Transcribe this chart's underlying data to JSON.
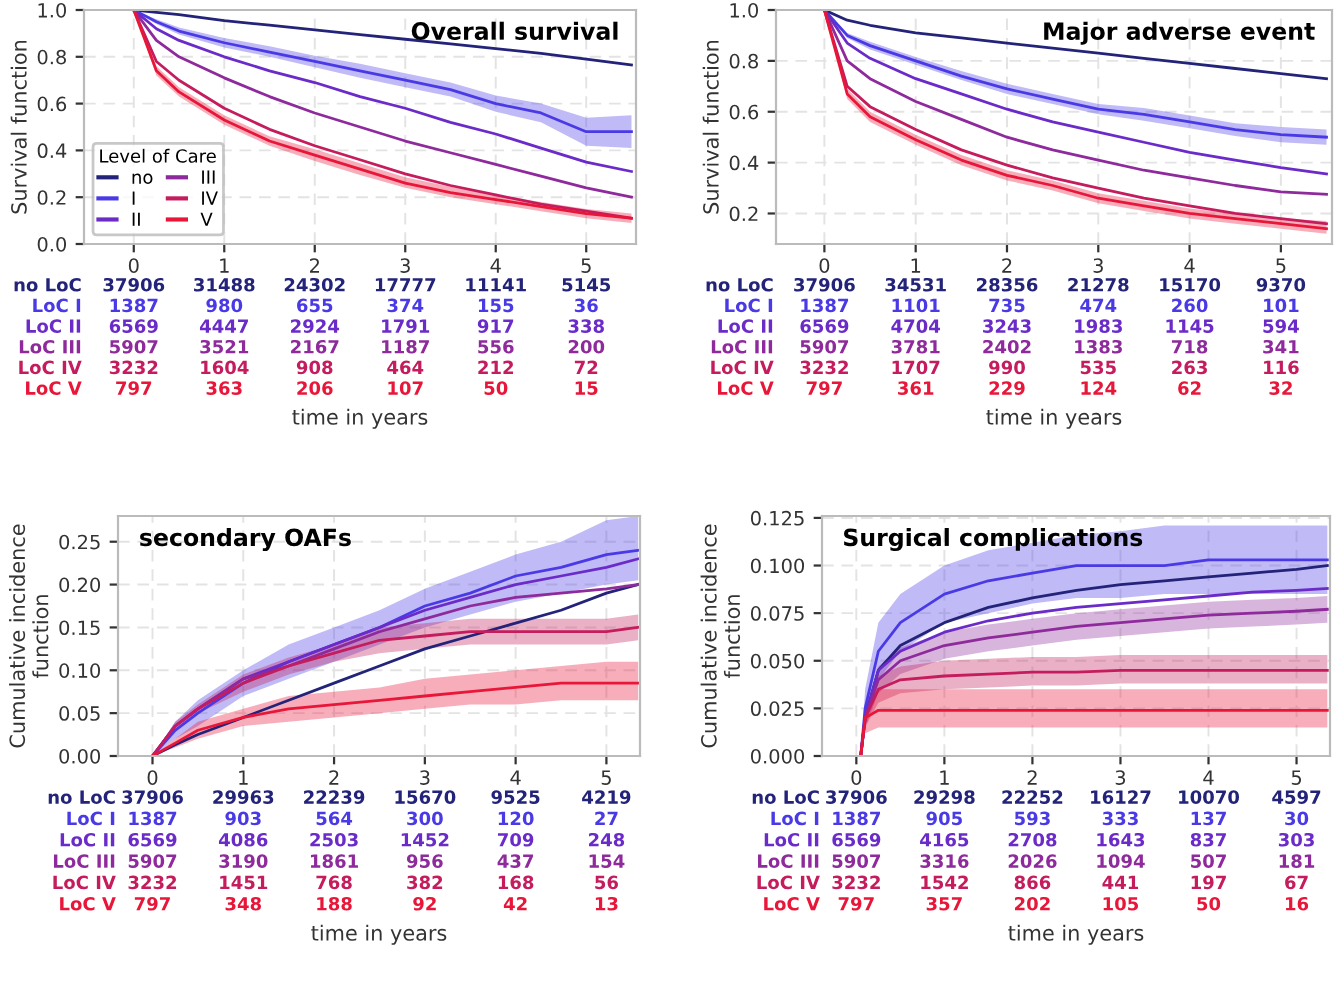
{
  "chart_data": [
    {
      "type": "line",
      "title": "Overall survival",
      "xlabel": "time in years",
      "ylabel": "Survival function",
      "legend": "bottom left",
      "legend_title": "Level of Care",
      "grid": true,
      "x": [
        0,
        0.25,
        0.5,
        1,
        1.5,
        2,
        2.5,
        3,
        3.5,
        4,
        4.5,
        5,
        5.5
      ],
      "xlim": [
        -0.55,
        5.55
      ],
      "xticks": [
        0,
        1,
        2,
        3,
        4,
        5
      ],
      "ylim": [
        0,
        1
      ],
      "yticks": [
        {
          "value": 0,
          "label": "0.0"
        },
        {
          "value": 0.2,
          "label": "0.2"
        },
        {
          "value": 0.4,
          "label": "0.4"
        },
        {
          "value": 0.6,
          "label": "0.6"
        },
        {
          "value": 0.8,
          "label": "0.8"
        },
        {
          "value": 1,
          "label": "1.0"
        }
      ],
      "series": [
        {
          "name": "no",
          "color": "#23237a",
          "values": [
            1,
            0.99,
            0.98,
            0.955,
            0.935,
            0.915,
            0.895,
            0.875,
            0.855,
            0.835,
            0.815,
            0.79,
            0.765
          ]
        },
        {
          "name": "I",
          "color": "#4a3ae6",
          "values": [
            1,
            0.95,
            0.91,
            0.86,
            0.82,
            0.78,
            0.74,
            0.7,
            0.66,
            0.6,
            0.56,
            0.48,
            0.48
          ],
          "lower": [
            1,
            0.94,
            0.895,
            0.84,
            0.8,
            0.755,
            0.71,
            0.67,
            0.63,
            0.565,
            0.52,
            0.42,
            0.41
          ],
          "upper": [
            1,
            0.96,
            0.925,
            0.88,
            0.845,
            0.805,
            0.77,
            0.73,
            0.69,
            0.635,
            0.6,
            0.54,
            0.55
          ]
        },
        {
          "name": "II",
          "color": "#6a2bc9",
          "values": [
            1,
            0.92,
            0.87,
            0.8,
            0.74,
            0.69,
            0.63,
            0.58,
            0.52,
            0.47,
            0.41,
            0.35,
            0.31
          ]
        },
        {
          "name": "III",
          "color": "#8e2a9c",
          "values": [
            1,
            0.87,
            0.8,
            0.71,
            0.63,
            0.56,
            0.5,
            0.44,
            0.39,
            0.34,
            0.29,
            0.24,
            0.2
          ]
        },
        {
          "name": "IV",
          "color": "#c41c5c",
          "values": [
            1,
            0.78,
            0.7,
            0.58,
            0.49,
            0.42,
            0.36,
            0.3,
            0.25,
            0.21,
            0.17,
            0.14,
            0.11
          ]
        },
        {
          "name": "V",
          "color": "#e8173a",
          "values": [
            1,
            0.74,
            0.65,
            0.53,
            0.44,
            0.38,
            0.32,
            0.26,
            0.22,
            0.19,
            0.16,
            0.13,
            0.11
          ],
          "lower": [
            1,
            0.72,
            0.63,
            0.51,
            0.42,
            0.355,
            0.295,
            0.24,
            0.2,
            0.17,
            0.14,
            0.11,
            0.09
          ],
          "upper": [
            1,
            0.76,
            0.67,
            0.55,
            0.46,
            0.405,
            0.345,
            0.285,
            0.245,
            0.21,
            0.18,
            0.15,
            0.13
          ]
        }
      ],
      "annotations": [
        "no LoC",
        "37906",
        "31488",
        "24302",
        "17777",
        "11141",
        "5145",
        "LoC I",
        "1387",
        "980",
        "655",
        "374",
        "155",
        "36",
        "LoC II",
        "6569",
        "4447",
        "2924",
        "1791",
        "917",
        "338",
        "LoC III",
        "5907",
        "3521",
        "2167",
        "1187",
        "556",
        "200",
        "LoC IV",
        "3232",
        "1604",
        "908",
        "464",
        "212",
        "72",
        "LoC V",
        "797",
        "363",
        "206",
        "107",
        "50",
        "15"
      ]
    },
    {
      "type": "line",
      "title": "Major adverse event",
      "xlabel": "time in years",
      "ylabel": "Survival function",
      "grid": true,
      "x": [
        0,
        0.25,
        0.5,
        1,
        1.5,
        2,
        2.5,
        3,
        3.5,
        4,
        4.5,
        5,
        5.5
      ],
      "xlim": [
        -0.53,
        5.56
      ],
      "xticks": [
        0,
        1,
        2,
        3,
        4,
        5
      ],
      "ylim": [
        0.08,
        1
      ],
      "yticks": [
        {
          "value": 0.2,
          "label": "0.2"
        },
        {
          "value": 0.4,
          "label": "0.4"
        },
        {
          "value": 0.6,
          "label": "0.6"
        },
        {
          "value": 0.8,
          "label": "0.8"
        },
        {
          "value": 1,
          "label": "1.0"
        }
      ],
      "series": [
        {
          "color": "#23237a",
          "values": [
            1,
            0.96,
            0.94,
            0.91,
            0.89,
            0.87,
            0.85,
            0.83,
            0.81,
            0.79,
            0.77,
            0.75,
            0.73
          ]
        },
        {
          "color": "#4a3ae6",
          "values": [
            1,
            0.9,
            0.86,
            0.8,
            0.74,
            0.69,
            0.65,
            0.61,
            0.59,
            0.56,
            0.53,
            0.51,
            0.5
          ],
          "lower": [
            1,
            0.89,
            0.845,
            0.785,
            0.725,
            0.67,
            0.63,
            0.59,
            0.565,
            0.535,
            0.505,
            0.48,
            0.47
          ],
          "upper": [
            1,
            0.91,
            0.875,
            0.815,
            0.76,
            0.71,
            0.67,
            0.63,
            0.615,
            0.585,
            0.555,
            0.54,
            0.53
          ]
        },
        {
          "color": "#6a2bc9",
          "values": [
            1,
            0.87,
            0.81,
            0.73,
            0.67,
            0.61,
            0.56,
            0.52,
            0.48,
            0.44,
            0.41,
            0.38,
            0.355
          ]
        },
        {
          "color": "#8e2a9c",
          "values": [
            1,
            0.8,
            0.73,
            0.64,
            0.57,
            0.5,
            0.45,
            0.41,
            0.37,
            0.34,
            0.31,
            0.285,
            0.275
          ]
        },
        {
          "color": "#c41c5c",
          "values": [
            1,
            0.7,
            0.62,
            0.53,
            0.45,
            0.39,
            0.34,
            0.3,
            0.26,
            0.23,
            0.2,
            0.18,
            0.16
          ]
        },
        {
          "color": "#e8173a",
          "values": [
            1,
            0.67,
            0.58,
            0.49,
            0.41,
            0.35,
            0.31,
            0.26,
            0.23,
            0.2,
            0.18,
            0.16,
            0.14
          ],
          "lower": [
            1,
            0.65,
            0.56,
            0.47,
            0.39,
            0.33,
            0.29,
            0.24,
            0.21,
            0.18,
            0.16,
            0.14,
            0.12
          ],
          "upper": [
            1,
            0.69,
            0.6,
            0.51,
            0.43,
            0.37,
            0.33,
            0.28,
            0.25,
            0.22,
            0.2,
            0.18,
            0.17
          ]
        }
      ],
      "annotations": [
        "no LoC",
        "37906",
        "34531",
        "28356",
        "21278",
        "15170",
        "9370",
        "LoC I",
        "1387",
        "1101",
        "735",
        "474",
        "260",
        "101",
        "LoC II",
        "6569",
        "4704",
        "3243",
        "1983",
        "1145",
        "594",
        "LoC III",
        "5907",
        "3781",
        "2402",
        "1383",
        "718",
        "341",
        "LoC IV",
        "3232",
        "1707",
        "990",
        "535",
        "263",
        "116",
        "LoC V",
        "797",
        "361",
        "229",
        "124",
        "62",
        "32"
      ]
    },
    {
      "type": "line",
      "title": "secondary OAFs",
      "xlabel": "time in years",
      "ylabel": "Cumulative incidence\nfunction",
      "grid": true,
      "x": [
        0,
        0.25,
        0.5,
        1,
        1.5,
        2,
        2.5,
        3,
        3.5,
        4,
        4.5,
        5,
        5.35
      ],
      "xlim": [
        -0.38,
        5.37
      ],
      "xticks": [
        0,
        1,
        2,
        3,
        4,
        5
      ],
      "ylim": [
        0,
        0.28
      ],
      "yticks": [
        {
          "value": 0,
          "label": "0.00"
        },
        {
          "value": 0.05,
          "label": "0.05"
        },
        {
          "value": 0.1,
          "label": "0.10"
        },
        {
          "value": 0.15,
          "label": "0.15"
        },
        {
          "value": 0.2,
          "label": "0.20"
        },
        {
          "value": 0.25,
          "label": "0.25"
        }
      ],
      "series": [
        {
          "color": "#23237a",
          "values": [
            0,
            0.013,
            0.025,
            0.045,
            0.065,
            0.085,
            0.105,
            0.125,
            0.14,
            0.155,
            0.17,
            0.19,
            0.2
          ]
        },
        {
          "color": "#4a3ae6",
          "values": [
            0,
            0.03,
            0.05,
            0.085,
            0.11,
            0.13,
            0.15,
            0.175,
            0.19,
            0.21,
            0.22,
            0.235,
            0.24
          ],
          "lower": [
            0,
            0.02,
            0.035,
            0.07,
            0.09,
            0.11,
            0.13,
            0.15,
            0.165,
            0.18,
            0.19,
            0.2,
            0.205
          ],
          "upper": [
            0,
            0.04,
            0.065,
            0.1,
            0.13,
            0.15,
            0.17,
            0.195,
            0.215,
            0.235,
            0.25,
            0.275,
            0.28
          ]
        },
        {
          "color": "#6a2bc9",
          "values": [
            0,
            0.035,
            0.055,
            0.09,
            0.11,
            0.13,
            0.15,
            0.17,
            0.185,
            0.2,
            0.21,
            0.22,
            0.23
          ]
        },
        {
          "color": "#8e2a9c",
          "values": [
            0,
            0.035,
            0.055,
            0.09,
            0.105,
            0.125,
            0.145,
            0.16,
            0.175,
            0.185,
            0.19,
            0.195,
            0.2
          ]
        },
        {
          "color": "#c41c5c",
          "values": [
            0,
            0.035,
            0.055,
            0.085,
            0.105,
            0.12,
            0.135,
            0.14,
            0.145,
            0.145,
            0.145,
            0.145,
            0.15
          ],
          "lower": [
            0,
            0.03,
            0.05,
            0.075,
            0.095,
            0.11,
            0.12,
            0.125,
            0.13,
            0.13,
            0.13,
            0.13,
            0.135
          ],
          "upper": [
            0,
            0.04,
            0.06,
            0.095,
            0.115,
            0.13,
            0.15,
            0.155,
            0.16,
            0.16,
            0.16,
            0.16,
            0.165
          ]
        },
        {
          "color": "#e8173a",
          "values": [
            0,
            0.015,
            0.03,
            0.045,
            0.055,
            0.06,
            0.065,
            0.07,
            0.075,
            0.08,
            0.085,
            0.085,
            0.085
          ],
          "lower": [
            0,
            0.01,
            0.02,
            0.035,
            0.04,
            0.045,
            0.05,
            0.055,
            0.06,
            0.06,
            0.065,
            0.065,
            0.065
          ],
          "upper": [
            0,
            0.02,
            0.04,
            0.055,
            0.07,
            0.075,
            0.08,
            0.09,
            0.095,
            0.1,
            0.105,
            0.11,
            0.11
          ]
        }
      ],
      "annotations": [
        "no LoC",
        "37906",
        "29963",
        "22239",
        "15670",
        "9525",
        "4219",
        "LoC I",
        "1387",
        "903",
        "564",
        "300",
        "120",
        "27",
        "LoC II",
        "6569",
        "4086",
        "2503",
        "1452",
        "709",
        "248",
        "LoC III",
        "5907",
        "3190",
        "1861",
        "956",
        "437",
        "154",
        "LoC IV",
        "3232",
        "1451",
        "768",
        "382",
        "168",
        "56",
        "LoC V",
        "797",
        "348",
        "188",
        "92",
        "42",
        "13"
      ]
    },
    {
      "type": "line",
      "title": "Surgical complications",
      "xlabel": "time in years",
      "ylabel": "Cumulative incidence\nfunction",
      "grid": true,
      "x": [
        0.05,
        0.1,
        0.25,
        0.5,
        1,
        1.5,
        2,
        2.5,
        3,
        3.5,
        4,
        4.5,
        5,
        5.35
      ],
      "xlim": [
        -0.39,
        5.38
      ],
      "xticks": [
        0,
        1,
        2,
        3,
        4,
        5
      ],
      "ylim": [
        0,
        0.126
      ],
      "yticks": [
        {
          "value": 0,
          "label": "0.000"
        },
        {
          "value": 0.025,
          "label": "0.025"
        },
        {
          "value": 0.05,
          "label": "0.050"
        },
        {
          "value": 0.075,
          "label": "0.075"
        },
        {
          "value": 0.1,
          "label": "0.100"
        },
        {
          "value": 0.125,
          "label": "0.125"
        }
      ],
      "series": [
        {
          "color": "#23237a",
          "values": [
            0,
            0.02,
            0.045,
            0.058,
            0.07,
            0.078,
            0.083,
            0.087,
            0.09,
            0.092,
            0.094,
            0.096,
            0.098,
            0.1
          ]
        },
        {
          "color": "#4a3ae6",
          "values": [
            0,
            0.025,
            0.055,
            0.07,
            0.085,
            0.092,
            0.096,
            0.1,
            0.1,
            0.1,
            0.103,
            0.103,
            0.103,
            0.103
          ],
          "lower": [
            0,
            0.015,
            0.04,
            0.055,
            0.07,
            0.075,
            0.08,
            0.083,
            0.083,
            0.085,
            0.085,
            0.085,
            0.085,
            0.085
          ],
          "upper": [
            0,
            0.035,
            0.07,
            0.085,
            0.1,
            0.108,
            0.112,
            0.116,
            0.118,
            0.121,
            0.121,
            0.121,
            0.121,
            0.121
          ]
        },
        {
          "color": "#6a2bc9",
          "values": [
            0,
            0.02,
            0.045,
            0.055,
            0.065,
            0.071,
            0.075,
            0.078,
            0.08,
            0.082,
            0.084,
            0.086,
            0.087,
            0.088
          ]
        },
        {
          "color": "#8e2a9c",
          "values": [
            0,
            0.02,
            0.04,
            0.05,
            0.058,
            0.062,
            0.065,
            0.068,
            0.07,
            0.072,
            0.074,
            0.075,
            0.076,
            0.077
          ],
          "lower": [
            0,
            0.015,
            0.033,
            0.043,
            0.051,
            0.055,
            0.058,
            0.061,
            0.063,
            0.065,
            0.067,
            0.068,
            0.069,
            0.07
          ],
          "upper": [
            0,
            0.025,
            0.047,
            0.057,
            0.065,
            0.069,
            0.072,
            0.075,
            0.077,
            0.079,
            0.081,
            0.082,
            0.083,
            0.084
          ]
        },
        {
          "color": "#c41c5c",
          "values": [
            0,
            0.02,
            0.035,
            0.04,
            0.042,
            0.043,
            0.044,
            0.044,
            0.045,
            0.045,
            0.045,
            0.045,
            0.045,
            0.045
          ],
          "lower": [
            0,
            0.015,
            0.028,
            0.033,
            0.035,
            0.036,
            0.037,
            0.037,
            0.038,
            0.038,
            0.038,
            0.038,
            0.038,
            0.038
          ],
          "upper": [
            0,
            0.025,
            0.042,
            0.047,
            0.05,
            0.051,
            0.052,
            0.052,
            0.053,
            0.053,
            0.053,
            0.053,
            0.053,
            0.053
          ]
        },
        {
          "color": "#e8173a",
          "values": [
            0,
            0.02,
            0.024,
            0.024,
            0.024,
            0.024,
            0.024,
            0.024,
            0.024,
            0.024,
            0.024,
            0.024,
            0.024,
            0.024
          ],
          "lower": [
            0,
            0.012,
            0.015,
            0.015,
            0.015,
            0.015,
            0.015,
            0.015,
            0.015,
            0.015,
            0.015,
            0.015,
            0.015,
            0.015
          ],
          "upper": [
            0,
            0.028,
            0.035,
            0.035,
            0.035,
            0.035,
            0.035,
            0.035,
            0.035,
            0.035,
            0.035,
            0.035,
            0.035,
            0.035
          ]
        }
      ],
      "annotations": [
        "no LoC",
        "37906",
        "29298",
        "22252",
        "16127",
        "10070",
        "4597",
        "LoC I",
        "1387",
        "905",
        "593",
        "333",
        "137",
        "30",
        "LoC II",
        "6569",
        "4165",
        "2708",
        "1643",
        "837",
        "303",
        "LoC III",
        "5907",
        "3316",
        "2026",
        "1094",
        "507",
        "181",
        "LoC IV",
        "3232",
        "1542",
        "866",
        "441",
        "197",
        "67",
        "LoC V",
        "797",
        "357",
        "202",
        "105",
        "50",
        "16"
      ]
    }
  ]
}
